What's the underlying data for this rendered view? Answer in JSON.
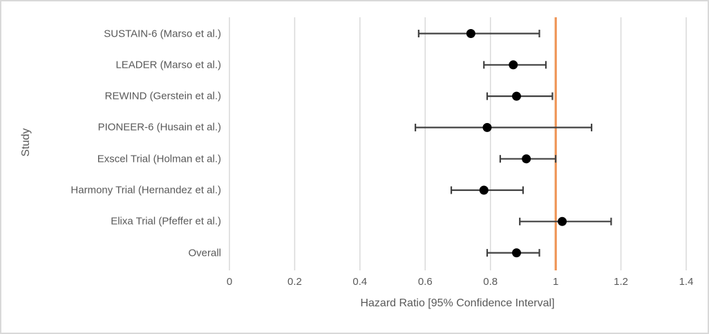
{
  "chart_data": {
    "type": "scatter",
    "subtype": "forest-plot",
    "title": "",
    "xlabel": "Hazard Ratio [95% Confidence Interval]",
    "ylabel": "Study",
    "xlim": [
      0,
      1.4
    ],
    "xticks": [
      0,
      0.2,
      0.4,
      0.6,
      0.8,
      1,
      1.2,
      1.4
    ],
    "xtick_labels": [
      "0",
      "0.2",
      "0.4",
      "0.6",
      "0.8",
      "1",
      "1.2",
      "1.4"
    ],
    "grid": "vertical-only",
    "legend": "none",
    "reference_line": {
      "x": 1.0,
      "label": "null-effect-line"
    },
    "studies": [
      {
        "label": "SUSTAIN-6 (Marso et al.)",
        "hr": 0.74,
        "ci_low": 0.58,
        "ci_high": 0.95
      },
      {
        "label": "LEADER (Marso et al.)",
        "hr": 0.87,
        "ci_low": 0.78,
        "ci_high": 0.97
      },
      {
        "label": "REWIND (Gerstein et al.)",
        "hr": 0.88,
        "ci_low": 0.79,
        "ci_high": 0.99
      },
      {
        "label": "PIONEER-6 (Husain et al.)",
        "hr": 0.79,
        "ci_low": 0.57,
        "ci_high": 1.11
      },
      {
        "label": "Exscel Trial (Holman et al.)",
        "hr": 0.91,
        "ci_low": 0.83,
        "ci_high": 1.0
      },
      {
        "label": "Harmony Trial (Hernandez et al.)",
        "hr": 0.78,
        "ci_low": 0.68,
        "ci_high": 0.9
      },
      {
        "label": "Elixa Trial (Pfeffer et al.)",
        "hr": 1.02,
        "ci_low": 0.89,
        "ci_high": 1.17
      },
      {
        "label": "Overall",
        "hr": 0.88,
        "ci_low": 0.79,
        "ci_high": 0.95
      }
    ],
    "colors": {
      "background": "#FFFFFF",
      "frame_border": "#D9D9D9",
      "gridline": "#D9D9D9",
      "tick": "#D9D9D9",
      "text": "#595959",
      "error_bar": "#404040",
      "marker": "#000000",
      "reference_line": "#ED7D31",
      "reference_line_halo": "#F5CBA7"
    }
  }
}
